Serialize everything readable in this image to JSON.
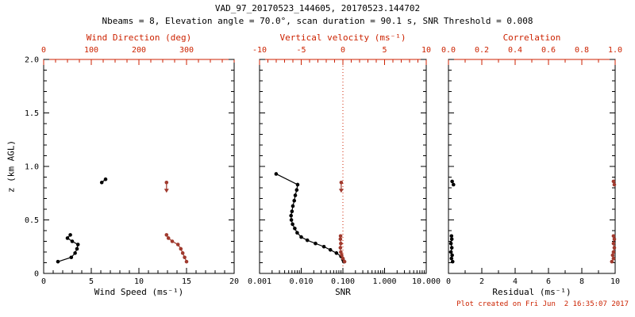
{
  "title": "VAD_97_20170523_144605, 20170523.144702",
  "subtitle": "Nbeams = 8, Elevation angle = 70.0°, scan duration = 90.1 s, SNR Threshold = 0.008",
  "footer": "Plot created on Fri Jun  2 16:35:07 2017",
  "colors": {
    "foreground": "#000000",
    "background": "#ffffff",
    "axis_accent": "#cc2200",
    "marker_accent": "#a03a2e"
  },
  "y_axis": {
    "label": "z (km AGL)",
    "range": [
      0,
      2
    ],
    "ticks": [
      0,
      0.5,
      1.0,
      1.5,
      2.0
    ],
    "tick_labels": [
      "0",
      "0.5",
      "1.0",
      "1.5",
      "2.0"
    ],
    "minor_step": 0.1
  },
  "chart_data": [
    {
      "type": "scatter",
      "name": "wind-speed-direction-panel",
      "bottom_axis": {
        "label": "Wind Speed (ms⁻¹)",
        "range": [
          0,
          20
        ],
        "ticks": [
          0,
          5,
          10,
          15,
          20
        ],
        "tick_labels": [
          "0",
          "5",
          "10",
          "15",
          "20"
        ],
        "minor_step": 1,
        "log": false
      },
      "top_axis": {
        "label": "Wind Direction (deg)",
        "range": [
          0,
          400
        ],
        "ticks": [
          0,
          100,
          200,
          300
        ],
        "tick_labels": [
          "0",
          "100",
          "200",
          "300"
        ],
        "minor_step": 25
      },
      "series": [
        {
          "name": "wind_speed",
          "axis": "bottom",
          "color": "black",
          "line": true,
          "points": [
            [
              1.5,
              0.11
            ],
            [
              2.9,
              0.15
            ],
            [
              3.3,
              0.19
            ],
            [
              3.5,
              0.23
            ],
            [
              3.6,
              0.27
            ],
            [
              3.0,
              0.3
            ],
            [
              2.5,
              0.33
            ],
            [
              2.8,
              0.36
            ],
            [
              6.1,
              0.85
            ],
            [
              6.5,
              0.88
            ]
          ]
        },
        {
          "name": "wind_direction",
          "axis": "top",
          "color": "accent",
          "line": true,
          "points": [
            [
              300,
              0.11
            ],
            [
              296,
              0.15
            ],
            [
              292,
              0.19
            ],
            [
              288,
              0.23
            ],
            [
              282,
              0.27
            ],
            [
              270,
              0.3
            ],
            [
              262,
              0.33
            ],
            [
              258,
              0.36
            ]
          ],
          "arrows": [
            [
              258,
              0.85
            ]
          ]
        }
      ]
    },
    {
      "type": "scatter",
      "name": "snr-vertical-velocity-panel",
      "bottom_axis": {
        "label": "SNR",
        "range": [
          0.001,
          10
        ],
        "ticks": [
          0.001,
          0.01,
          0.1,
          1,
          10
        ],
        "tick_labels": [
          "0.001",
          "0.010",
          "0.100",
          "1.000",
          "10.000"
        ],
        "log": true
      },
      "top_axis": {
        "label": "Vertical velocity (ms⁻¹)",
        "range": [
          -10,
          10
        ],
        "ticks": [
          -10,
          -5,
          0,
          5,
          10
        ],
        "tick_labels": [
          "-10",
          "-5",
          "0",
          "5",
          "10"
        ],
        "minor_step": 1
      },
      "refline": {
        "axis": "top",
        "value": 0,
        "style": "dotted"
      },
      "series": [
        {
          "name": "snr",
          "axis": "bottom",
          "color": "black",
          "line": true,
          "points": [
            [
              0.105,
              0.11
            ],
            [
              0.1,
              0.13
            ],
            [
              0.09,
              0.16
            ],
            [
              0.07,
              0.19
            ],
            [
              0.05,
              0.22
            ],
            [
              0.035,
              0.25
            ],
            [
              0.022,
              0.28
            ],
            [
              0.014,
              0.31
            ],
            [
              0.01,
              0.34
            ],
            [
              0.008,
              0.38
            ],
            [
              0.007,
              0.42
            ],
            [
              0.0062,
              0.46
            ],
            [
              0.0058,
              0.5
            ],
            [
              0.0057,
              0.54
            ],
            [
              0.006,
              0.58
            ],
            [
              0.0063,
              0.63
            ],
            [
              0.0068,
              0.68
            ],
            [
              0.0072,
              0.73
            ],
            [
              0.0078,
              0.78
            ],
            [
              0.0082,
              0.83
            ],
            [
              0.0025,
              0.93
            ]
          ]
        },
        {
          "name": "vertical_velocity",
          "axis": "top",
          "color": "accent",
          "line": true,
          "points": [
            [
              0.2,
              0.11
            ],
            [
              0.0,
              0.14
            ],
            [
              -0.15,
              0.17
            ],
            [
              -0.25,
              0.2
            ],
            [
              -0.3,
              0.24
            ],
            [
              -0.25,
              0.28
            ],
            [
              -0.3,
              0.32
            ],
            [
              -0.28,
              0.35
            ]
          ],
          "arrows": [
            [
              -0.2,
              0.85
            ]
          ]
        }
      ]
    },
    {
      "type": "scatter",
      "name": "residual-correlation-panel",
      "bottom_axis": {
        "label": "Residual (ms⁻¹)",
        "range": [
          0,
          10
        ],
        "ticks": [
          0,
          2,
          4,
          6,
          8,
          10
        ],
        "tick_labels": [
          "0",
          "2",
          "4",
          "6",
          "8",
          "10"
        ],
        "minor_step": 1,
        "log": false
      },
      "top_axis": {
        "label": "Correlation",
        "range": [
          0,
          1
        ],
        "ticks": [
          0,
          0.2,
          0.4,
          0.6,
          0.8,
          1.0
        ],
        "tick_labels": [
          "0.0",
          "0.2",
          "0.4",
          "0.6",
          "0.8",
          "1.0"
        ],
        "minor_step": 0.1
      },
      "series": [
        {
          "name": "residual",
          "axis": "bottom",
          "color": "black",
          "line": true,
          "points": [
            [
              0.25,
              0.11
            ],
            [
              0.18,
              0.14
            ],
            [
              0.22,
              0.17
            ],
            [
              0.15,
              0.2
            ],
            [
              0.2,
              0.24
            ],
            [
              0.15,
              0.28
            ],
            [
              0.2,
              0.32
            ],
            [
              0.18,
              0.35
            ],
            [
              0.3,
              0.83
            ],
            [
              0.22,
              0.86
            ]
          ]
        },
        {
          "name": "correlation",
          "axis": "top",
          "color": "accent",
          "line": true,
          "points": [
            [
              0.98,
              0.11
            ],
            [
              0.99,
              0.14
            ],
            [
              0.985,
              0.17
            ],
            [
              0.99,
              0.2
            ],
            [
              0.995,
              0.24
            ],
            [
              0.99,
              0.28
            ],
            [
              0.995,
              0.32
            ],
            [
              0.99,
              0.35
            ],
            [
              0.995,
              0.83
            ],
            [
              0.99,
              0.86
            ]
          ]
        }
      ]
    }
  ]
}
